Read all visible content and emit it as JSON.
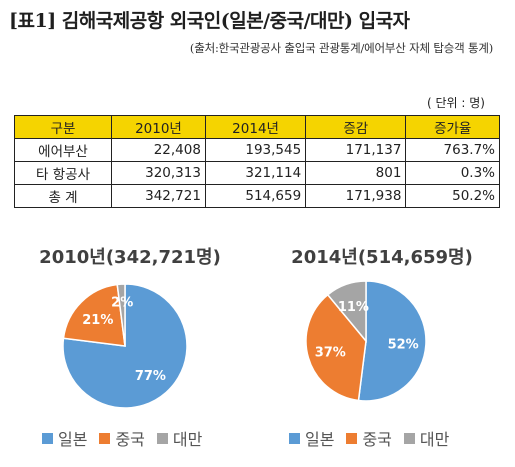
{
  "header": {
    "title": "[표1] 김해국제공항 외국인(일본/중국/대만) 입국자",
    "source": "(출처:한국관광공사 출입국 관광통계/에어부산 자체 탑승객 통계)",
    "unit": "( 단위 : 명)"
  },
  "table": {
    "columns": [
      "구분",
      "2010년",
      "2014년",
      "증감",
      "증가율"
    ],
    "rows": [
      [
        "에어부산",
        "22,408",
        "193,545",
        "171,137",
        "763.7%"
      ],
      [
        "타 항공사",
        "320,313",
        "321,114",
        "801",
        "0.3%"
      ],
      [
        "총  계",
        "342,721",
        "514,659",
        "171,938",
        "50.2%"
      ]
    ]
  },
  "colors": {
    "일본": "#5b9bd5",
    "중국": "#ed7d31",
    "대만": "#a5a5a5",
    "header_bg": "#f5d400"
  },
  "chart_data": [
    {
      "type": "pie",
      "title": "2010년(342,721명)",
      "categories": [
        "일본",
        "중국",
        "대만"
      ],
      "values": [
        77,
        21,
        2
      ],
      "labels": [
        "77%",
        "21%",
        "2%"
      ],
      "legend": [
        "일본",
        "중국",
        "대만"
      ],
      "legend_position": "bottom"
    },
    {
      "type": "pie",
      "title": "2014년(514,659명)",
      "categories": [
        "일본",
        "중국",
        "대만"
      ],
      "values": [
        52,
        37,
        11
      ],
      "labels": [
        "52%",
        "37%",
        "11%"
      ],
      "legend": [
        "일본",
        "중국",
        "대만"
      ],
      "legend_position": "bottom"
    }
  ]
}
